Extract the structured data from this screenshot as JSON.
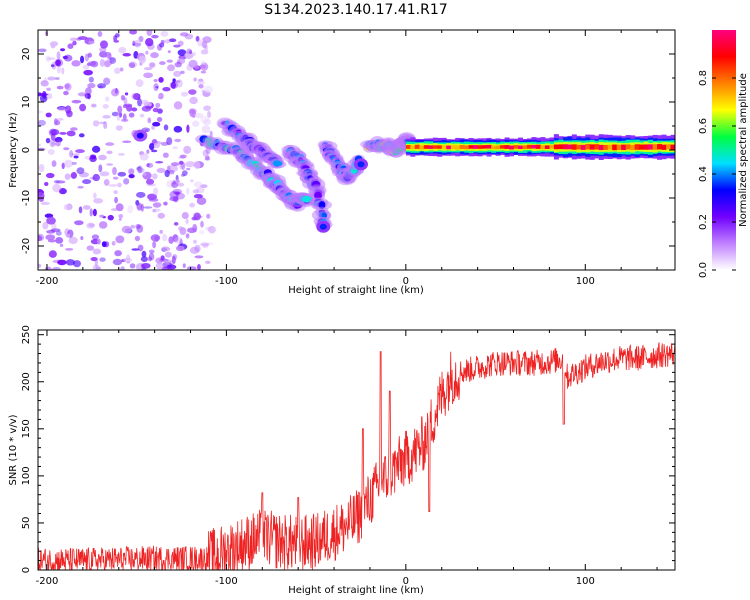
{
  "figure_title": "S134.2023.140.17.41.R17",
  "chart_data": [
    {
      "type": "heatmap",
      "name": "spectrogram",
      "xlabel": "Height of straight line (km)",
      "ylabel": "Frequency (Hz)",
      "xlim": [
        -205,
        150
      ],
      "ylim": [
        -25,
        25
      ],
      "xticks": [
        -200,
        -100,
        0,
        100
      ],
      "yticks": [
        -20,
        -10,
        0,
        10,
        20
      ],
      "xtick_labels": [
        "-200",
        "-100",
        "0",
        "100"
      ],
      "ytick_labels": [
        "-20",
        "-10",
        "0",
        "10",
        "20"
      ],
      "colorbar": {
        "label": "Normalized spectral amplitude",
        "range": [
          0,
          1
        ],
        "ticks": [
          0.0,
          0.2,
          0.4,
          0.6,
          0.8
        ],
        "tick_labels": [
          "0.0",
          "0.2",
          "0.4",
          "0.6",
          "0.8"
        ],
        "colors": [
          "#ffffff",
          "#c080ff",
          "#7000ff",
          "#0000ff",
          "#00e0ff",
          "#00ff40",
          "#ffff00",
          "#ff8000",
          "#ff0000",
          "#ff0080"
        ]
      },
      "noise_region": {
        "x_start": -205,
        "x_end": -108,
        "amplitude": 0.25
      },
      "chirp_tracks": [
        {
          "x": [
            -112,
            -95,
            -82,
            -72
          ],
          "y": [
            2,
            0,
            -4,
            -7
          ],
          "amplitude": 0.45
        },
        {
          "x": [
            -100,
            -88,
            -78,
            -70
          ],
          "y": [
            5,
            2,
            -1,
            -3
          ],
          "amplitude": 0.35
        },
        {
          "x": [
            -75,
            -68,
            -62,
            -55
          ],
          "y": [
            -6,
            -9,
            -11,
            -10
          ],
          "amplitude": 0.4
        },
        {
          "x": [
            -65,
            -57,
            -50,
            -45
          ],
          "y": [
            0,
            -3,
            -8,
            -16
          ],
          "amplitude": 0.35
        },
        {
          "x": [
            -45,
            -38,
            -32,
            -25
          ],
          "y": [
            1,
            -3,
            -6,
            -2
          ],
          "amplitude": 0.4
        },
        {
          "x": [
            -20,
            -12,
            -5,
            0,
            3
          ],
          "y": [
            1,
            1,
            0,
            2,
            1
          ],
          "amplitude": 0.6
        }
      ],
      "signal_band": {
        "x_start": 0,
        "x_end": 150,
        "y_center": 0.6,
        "amplitude": 0.95
      },
      "hotspots": [
        {
          "x": -148,
          "y": 3,
          "amplitude": 0.3
        },
        {
          "x": -46,
          "y": -16,
          "amplitude": 0.35
        },
        {
          "x": -25,
          "y": -3,
          "amplitude": 0.35
        },
        {
          "x": 85,
          "y": 0,
          "amplitude": 0.55
        }
      ]
    },
    {
      "type": "line",
      "name": "snr",
      "xlabel": "Height of straight line (km)",
      "ylabel": "SNR (10 * v/v)",
      "xlim": [
        -205,
        150
      ],
      "ylim": [
        0,
        255
      ],
      "xticks": [
        -200,
        -100,
        0,
        100
      ],
      "yticks": [
        0,
        50,
        100,
        150,
        200,
        250
      ],
      "xtick_labels": [
        "-200",
        "-100",
        "0",
        "100"
      ],
      "ytick_labels": [
        "0",
        "50",
        "100",
        "150",
        "200",
        "250"
      ],
      "line_color": "#ee2222",
      "series": [
        {
          "name": "SNR",
          "x": [
            -205,
            -180,
            -160,
            -140,
            -120,
            -110,
            -100,
            -90,
            -80,
            -70,
            -60,
            -50,
            -40,
            -30,
            -25,
            -20,
            -15,
            -10,
            -5,
            0,
            5,
            10,
            15,
            20,
            25,
            30,
            40,
            50,
            60,
            70,
            80,
            88,
            90,
            100,
            110,
            120,
            130,
            140,
            150
          ],
          "y": [
            10,
            10,
            11,
            12,
            12,
            12,
            20,
            28,
            35,
            30,
            28,
            30,
            40,
            50,
            60,
            75,
            90,
            100,
            110,
            118,
            125,
            135,
            160,
            185,
            205,
            210,
            215,
            220,
            220,
            220,
            221,
            225,
            205,
            215,
            222,
            225,
            225,
            228,
            230
          ]
        }
      ],
      "spikes": [
        {
          "x": -80,
          "y": 82
        },
        {
          "x": -60,
          "y": 77
        },
        {
          "x": -24,
          "y": 150
        },
        {
          "x": -14,
          "y": 232
        },
        {
          "x": -9,
          "y": 190
        },
        {
          "x": 13,
          "y": 62
        },
        {
          "x": 88,
          "y": 155
        }
      ],
      "noise_amplitude": 14
    }
  ]
}
